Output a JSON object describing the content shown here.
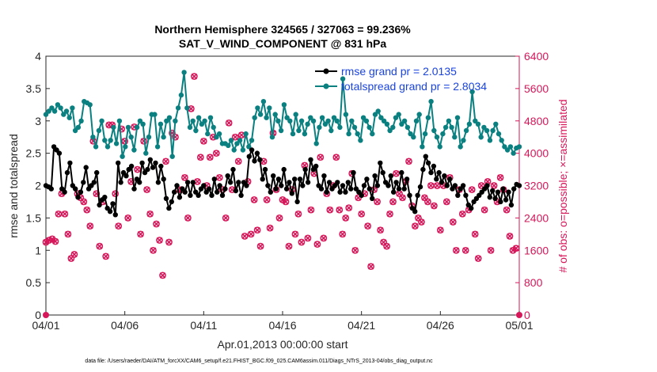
{
  "chart_data": {
    "type": "line",
    "title": "Northern Hemisphere 324565 / 327063 = 99.236%",
    "subtitle": "SAT_V_WIND_COMPONENT @ 831 hPa",
    "xlabel": "Apr.01,2013 00:00:00 start",
    "ylabel": "rmse and totalspread",
    "ylabel_right": "# of obs: o=possible; ×=assimilated",
    "footnote": "data file: /Users/raeder/DAI/ATM_forcXX/CAM6_setup/f.e21.FHIST_BGC.f09_025.CAM6assim.011/Diags_NTrS_2013-04/obs_diag_output.nc",
    "x_tick_labels": [
      "04/01",
      "04/06",
      "04/11",
      "04/16",
      "04/21",
      "04/26",
      "05/01"
    ],
    "y_ticks": [
      "0",
      "0.5",
      "1",
      "1.5",
      "2",
      "2.5",
      "3",
      "3.5",
      "4"
    ],
    "y_right_ticks": [
      "0",
      "800",
      "1600",
      "2400",
      "3200",
      "4000",
      "4800",
      "5600",
      "6400"
    ],
    "xlim": [
      0,
      30
    ],
    "ylim": [
      0,
      4
    ],
    "ylim_right": [
      0,
      6400
    ],
    "legend": [
      "rmse grand pr = 2.0135",
      "totalspread grand pr = 2.8034"
    ],
    "colors": {
      "rmse": "#000000",
      "totalspread": "#0a8080",
      "obs": "#d6175a",
      "legend_text": "#1a44e0"
    },
    "series": [
      {
        "name": "rmse",
        "values": [
          2.0,
          1.98,
          1.95,
          2.6,
          2.55,
          2.5,
          1.95,
          1.9,
          2.2,
          2.35,
          2.0,
          1.95,
          1.82,
          1.9,
          2.05,
          2.28,
          1.95,
          2.0,
          2.05,
          2.2,
          1.7,
          1.78,
          1.82,
          1.65,
          1.6,
          1.72,
          1.55,
          2.35,
          2.05,
          2.2,
          2.15,
          2.25,
          2.3,
          1.95,
          2.1,
          2.05,
          2.35,
          2.2,
          2.25,
          2.4,
          2.28,
          2.35,
          2.05,
          2.3,
          2.1,
          1.8,
          1.65,
          1.75,
          1.9,
          2.0,
          1.82,
          1.95,
          1.9,
          2.05,
          1.85,
          2.05,
          1.9,
          1.85,
          1.95,
          2.0,
          1.9,
          1.95,
          1.85,
          2.1,
          1.9,
          2.0,
          1.85,
          1.95,
          2.15,
          2.05,
          2.25,
          1.92,
          2.05,
          1.85,
          2.05,
          2.0,
          2.45,
          2.55,
          2.38,
          2.5,
          2.4,
          2.1,
          2.25,
          2.0,
          1.9,
          2.15,
          1.95,
          2.1,
          2.0,
          2.25,
          1.95,
          2.05,
          1.88,
          2.1,
          1.75,
          2.1,
          2.0,
          2.25,
          2.05,
          2.4,
          2.25,
          2.3,
          2.0,
          1.95,
          2.15,
          1.9,
          2.05,
          1.95,
          2.0,
          2.05,
          1.9,
          2.0,
          1.9,
          2.05,
          1.95,
          2.2,
          1.95,
          1.9,
          1.85,
          2.0,
          2.1,
          1.95,
          1.8,
          2.15,
          2.0,
          2.35,
          2.2,
          2.05,
          2.0,
          2.15,
          1.9,
          2.05,
          1.95,
          2.2,
          1.95,
          2.1,
          1.85,
          1.65,
          1.6,
          1.85,
          1.98,
          2.25,
          2.45,
          2.35,
          2.2,
          2.3,
          2.1,
          2.2,
          2.05,
          2.15,
          2.0,
          2.1,
          1.95,
          2.0,
          1.85,
          1.95,
          2.0,
          1.85,
          1.7,
          1.65,
          1.75,
          1.8,
          1.85,
          1.9,
          1.95,
          2.0,
          1.82,
          1.92,
          1.8,
          1.9,
          1.75,
          1.95,
          1.78,
          1.9,
          1.7,
          1.95,
          2.02,
          2.0
        ]
      },
      {
        "name": "totalspread",
        "values": [
          3.1,
          3.15,
          3.2,
          3.15,
          3.25,
          3.2,
          3.1,
          3.15,
          3.05,
          3.2,
          2.85,
          2.9,
          3.0,
          3.3,
          3.28,
          3.25,
          2.75,
          2.6,
          2.85,
          3.0,
          2.7,
          2.6,
          2.7,
          2.9,
          2.65,
          3.0,
          2.45,
          2.6,
          2.9,
          2.75,
          2.55,
          2.9,
          3.0,
          2.95,
          2.5,
          2.75,
          3.1,
          3.1,
          2.6,
          2.95,
          2.75,
          3.0,
          3.05,
          2.45,
          3.0,
          3.2,
          3.4,
          3.75,
          3.2,
          2.9,
          3.0,
          2.85,
          3.05,
          2.95,
          3.0,
          2.8,
          3.05,
          2.9,
          2.75,
          2.8,
          2.65,
          2.65,
          2.62,
          2.7,
          2.55,
          2.65,
          2.7,
          2.55,
          2.8,
          2.6,
          2.7,
          3.05,
          3.2,
          3.1,
          3.3,
          3.05,
          3.2,
          2.75,
          3.1,
          3.0,
          2.85,
          3.25,
          3.05,
          3.0,
          2.8,
          3.1,
          2.85,
          3.0,
          2.8,
          2.95,
          3.05,
          3.0,
          2.65,
          2.9,
          3.05,
          2.95,
          3.0,
          2.85,
          3.05,
          3.0,
          2.9,
          3.65,
          3.1,
          2.8,
          3.0,
          2.9,
          2.8,
          2.7,
          3.05,
          3.0,
          2.9,
          2.8,
          3.1,
          3.15,
          3.05,
          3.0,
          2.95,
          2.85,
          2.9,
          3.05,
          3.1,
          2.95,
          3.0,
          2.9,
          2.8,
          2.75,
          3.0,
          3.1,
          2.6,
          2.8,
          3.05,
          3.3,
          2.85,
          2.75,
          2.6,
          2.8,
          2.9,
          3.0,
          2.9,
          2.75,
          3.05,
          2.6,
          2.7,
          2.85,
          2.95,
          3.45,
          3.0,
          2.95,
          2.75,
          2.9,
          2.85,
          2.7,
          2.85,
          2.95,
          2.8,
          2.7,
          2.6,
          2.55,
          2.6,
          2.5,
          2.58,
          2.6
        ]
      },
      {
        "name": "obs_possible",
        "values": [
          0
        ]
      }
    ]
  }
}
